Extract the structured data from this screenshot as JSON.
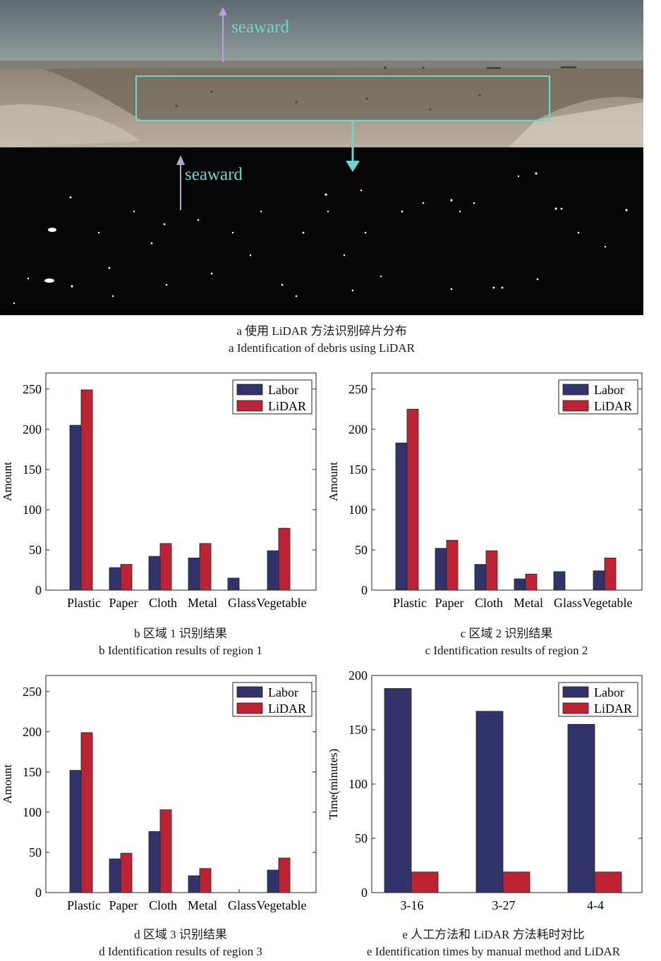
{
  "photo": {
    "top_label": "seaward",
    "bottom_label": "seaward",
    "caption_cn": "a 使用 LiDAR 方法识别碎片分布",
    "caption_en": "a Identification of debris using LiDAR"
  },
  "colors": {
    "labor": "#32336a",
    "lidar": "#be2333",
    "frame": "#6cd6cf",
    "arrow": "#b3a4d6"
  },
  "panels": {
    "b": {
      "caption_cn": "b 区域 1 识别结果",
      "caption_en": "b Identification results of region 1"
    },
    "c": {
      "caption_cn": "c 区域 2 识别结果",
      "caption_en": "c Identification results of region 2"
    },
    "d": {
      "caption_cn": "d 区域 3 识别结果",
      "caption_en": "d Identification results of region 3"
    },
    "e": {
      "caption_cn": "e 人工方法和 LiDAR 方法耗时对比",
      "caption_en": "e Identification times  by manual method and LiDAR"
    }
  },
  "chart_data": [
    {
      "id": "b",
      "type": "bar",
      "categories": [
        "Plastic",
        "Paper",
        "Cloth",
        "Metal",
        "Glass",
        "Vegetable"
      ],
      "series": [
        {
          "name": "Labor",
          "values": [
            205,
            28,
            42,
            40,
            15,
            49
          ]
        },
        {
          "name": "LiDAR",
          "values": [
            249,
            32,
            58,
            58,
            0,
            77
          ]
        }
      ],
      "ylabel": "Amount",
      "yticks": [
        0,
        50,
        100,
        150,
        200,
        250
      ],
      "ylim": [
        0,
        270
      ],
      "legend": "top-right",
      "grid": false
    },
    {
      "id": "c",
      "type": "bar",
      "categories": [
        "Plastic",
        "Paper",
        "Cloth",
        "Metal",
        "Glass",
        "Vegetable"
      ],
      "series": [
        {
          "name": "Labor",
          "values": [
            183,
            52,
            32,
            14,
            23,
            24
          ]
        },
        {
          "name": "LiDAR",
          "values": [
            225,
            62,
            49,
            20,
            0,
            40
          ]
        }
      ],
      "ylabel": "Amount",
      "yticks": [
        0,
        50,
        100,
        150,
        200,
        250
      ],
      "ylim": [
        0,
        270
      ],
      "legend": "top-right",
      "grid": false
    },
    {
      "id": "d",
      "type": "bar",
      "categories": [
        "Plastic",
        "Paper",
        "Cloth",
        "Metal",
        "Glass",
        "Vegetable"
      ],
      "series": [
        {
          "name": "Labor",
          "values": [
            152,
            42,
            76,
            21,
            0,
            28
          ]
        },
        {
          "name": "LiDAR",
          "values": [
            199,
            49,
            103,
            30,
            0,
            43
          ]
        }
      ],
      "ylabel": "Amount",
      "yticks": [
        0,
        50,
        100,
        150,
        200,
        250
      ],
      "ylim": [
        0,
        270
      ],
      "legend": "top-right",
      "grid": false
    },
    {
      "id": "e",
      "type": "bar",
      "categories": [
        "3-16",
        "3-27",
        "4-4"
      ],
      "series": [
        {
          "name": "Labor",
          "values": [
            188,
            167,
            155
          ]
        },
        {
          "name": "LiDAR",
          "values": [
            19,
            19,
            19
          ]
        }
      ],
      "ylabel": "Time(minutes)",
      "yticks": [
        0,
        50,
        100,
        150,
        200
      ],
      "ylim": [
        0,
        200
      ],
      "legend": "top-right",
      "grid": false
    }
  ]
}
